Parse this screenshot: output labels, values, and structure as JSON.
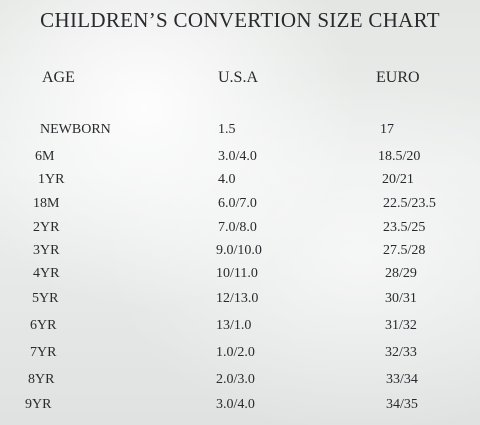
{
  "header": {
    "title": "CHILDREN’S CONVERTION SIZE CHART"
  },
  "table": {
    "columns": [
      "AGE",
      "U.S.A",
      "EURO"
    ],
    "rows": [
      [
        "NEWBORN",
        "1.5",
        "17"
      ],
      [
        "6M",
        "3.0/4.0",
        "18.5/20"
      ],
      [
        "1YR",
        "4.0",
        "20/21"
      ],
      [
        "18M",
        "6.0/7.0",
        "22.5/23.5"
      ],
      [
        "2YR",
        "7.0/8.0",
        "23.5/25"
      ],
      [
        "3YR",
        "9.0/10.0",
        "27.5/28"
      ],
      [
        "4YR",
        "10/11.0",
        "28/29"
      ],
      [
        "5YR",
        "12/13.0",
        "30/31"
      ],
      [
        "6YR",
        "13/1.0",
        "31/32"
      ],
      [
        "7YR",
        "1.0/2.0",
        "32/33"
      ],
      [
        "8YR",
        "2.0/3.0",
        "33/34"
      ],
      [
        "9YR",
        "3.0/4.0",
        "34/35"
      ]
    ]
  }
}
